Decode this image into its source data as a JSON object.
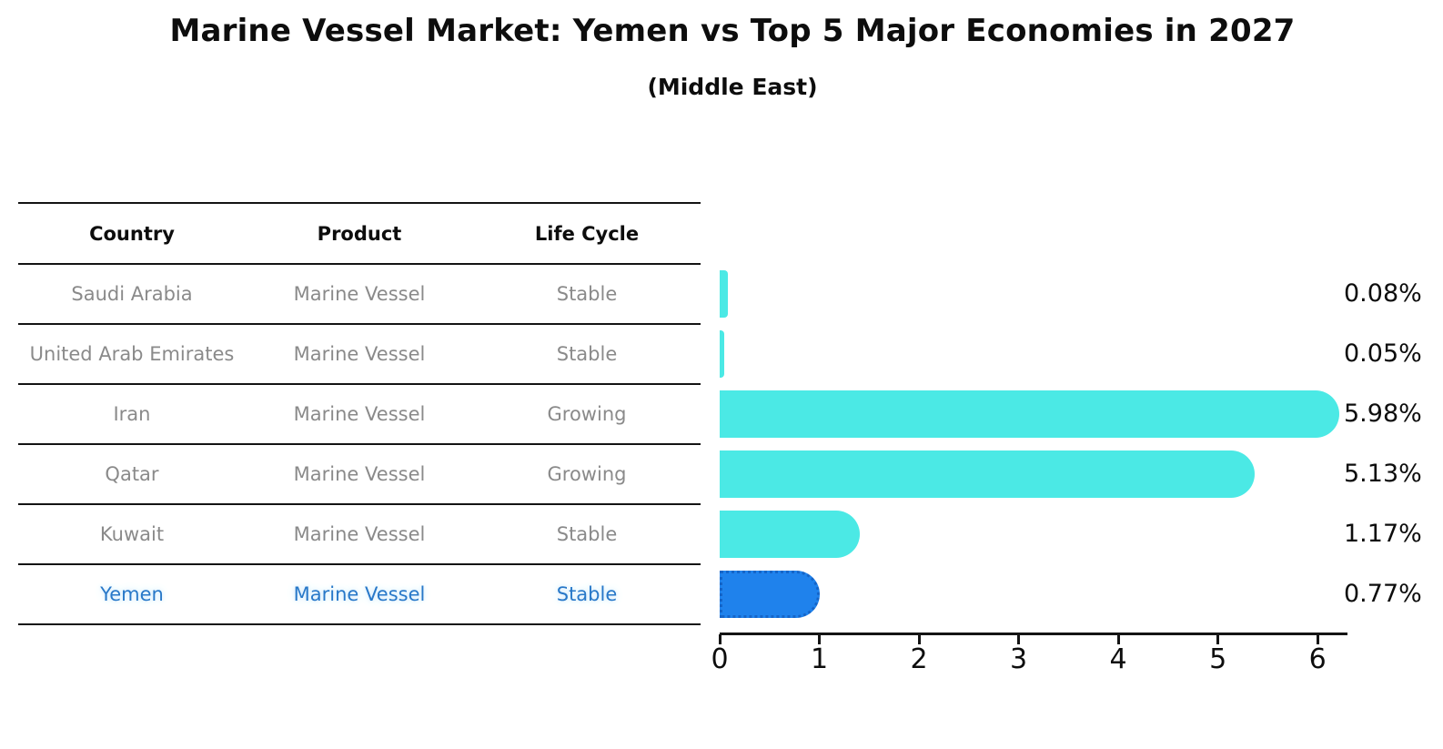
{
  "title": "Marine Vessel Market: Yemen vs Top 5 Major Economies in 2027",
  "subtitle": "(Middle East)",
  "table": {
    "headers": [
      "Country",
      "Product",
      "Life Cycle"
    ],
    "rows": [
      {
        "country": "Saudi Arabia",
        "product": "Marine Vessel",
        "life_cycle": "Stable",
        "highlight": false
      },
      {
        "country": "United Arab Emirates",
        "product": "Marine Vessel",
        "life_cycle": "Stable",
        "highlight": false
      },
      {
        "country": "Iran",
        "product": "Marine Vessel",
        "life_cycle": "Growing",
        "highlight": false
      },
      {
        "country": "Qatar",
        "product": "Marine Vessel",
        "life_cycle": "Growing",
        "highlight": false
      },
      {
        "country": "Kuwait",
        "product": "Marine Vessel",
        "life_cycle": "Stable",
        "highlight": false
      },
      {
        "country": "Yemen",
        "product": "Marine Vessel",
        "life_cycle": "Stable",
        "highlight": true
      }
    ]
  },
  "chart_data": {
    "type": "bar",
    "orientation": "horizontal",
    "title": "Marine Vessel Market: Yemen vs Top 5 Major Economies in 2027",
    "subtitle": "(Middle East)",
    "categories": [
      "Saudi Arabia",
      "United Arab Emirates",
      "Iran",
      "Qatar",
      "Kuwait",
      "Yemen"
    ],
    "values": [
      0.08,
      0.05,
      5.98,
      5.13,
      1.17,
      0.77
    ],
    "value_labels": [
      "0.08%",
      "0.05%",
      "5.98%",
      "5.13%",
      "1.17%",
      "0.77%"
    ],
    "x_ticks": [
      "0",
      "1",
      "2",
      "3",
      "4",
      "5",
      "6"
    ],
    "xlim": [
      0,
      6.3
    ],
    "xlabel": "",
    "ylabel": "",
    "grid": false,
    "legend": false,
    "highlight_index": 5
  },
  "colors": {
    "background": "#ffffff",
    "bar": "#4BE9E5",
    "highlight_bar": "#1F82EC",
    "highlight_bar_border": "#1565C8",
    "text": "#0d0d0d",
    "muted_text": "#8a8a8a",
    "highlight_text": "#2878C8",
    "rule": "#141414"
  }
}
